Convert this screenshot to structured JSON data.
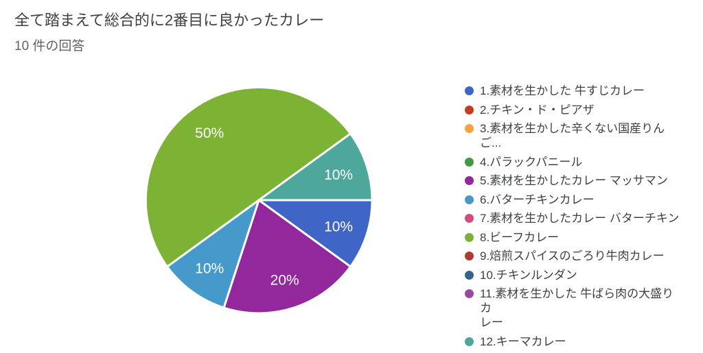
{
  "header": {
    "title": "全て踏まえて総合的に2番目に良かったカレー",
    "response_count": "10 件の回答"
  },
  "chart_data": {
    "type": "pie",
    "title": "全て踏まえて総合的に2番目に良かったカレー",
    "subtitle": "10 件の回答",
    "total_responses": 10,
    "start_angle_deg": 0,
    "direction": "clockwise",
    "legend_position": "right",
    "slice_label_format": "percent",
    "slice_label_color": "#ffffff",
    "slice_separator_color": "#ffffff",
    "legend": [
      {
        "label": "1.素材を生かした 牛すじカレー",
        "color": "#3f66c6",
        "value_percent": 10
      },
      {
        "label": "2.チキン・ド・ピアザ",
        "color": "#c73c1e",
        "value_percent": 0
      },
      {
        "label": "3.素材を生かした辛くない国産りんご...",
        "color": "#f2a33a",
        "value_percent": 0
      },
      {
        "label": "4.パラックパニール",
        "color": "#3f9a41",
        "value_percent": 0
      },
      {
        "label": "5.素材を生かしたカレー マッサマン",
        "color": "#93289c",
        "value_percent": 20
      },
      {
        "label": "6.バターチキンカレー",
        "color": "#459acb",
        "value_percent": 10
      },
      {
        "label": "7.素材を生かしたカレー バターチキン",
        "color": "#d14c7c",
        "value_percent": 0
      },
      {
        "label": "8.ビーフカレー",
        "color": "#7cb334",
        "value_percent": 50
      },
      {
        "label": "9.焙煎スパイスのごろり牛肉カレー",
        "color": "#ae3a32",
        "value_percent": 0
      },
      {
        "label": "10.チキンルンダン",
        "color": "#33638f",
        "value_percent": 0
      },
      {
        "label": "11.素材を生かした 牛ばら肉の大盛りカ\nレー",
        "color": "#9a4a9e",
        "value_percent": 0
      },
      {
        "label": "12.キーマカレー",
        "color": "#4da79a",
        "value_percent": 10
      }
    ]
  }
}
